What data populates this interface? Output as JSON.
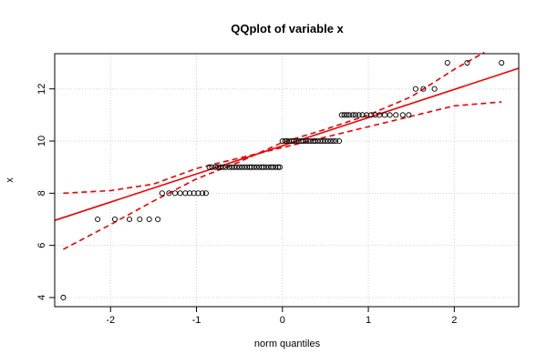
{
  "chart_data": {
    "type": "scatter",
    "title": "QQplot of variable x",
    "xlabel": "norm quantiles",
    "ylabel": "x",
    "xlim": [
      -2.65,
      2.75
    ],
    "ylim": [
      3.65,
      13.35
    ],
    "xticks": [
      -2,
      -1,
      0,
      1,
      2
    ],
    "yticks": [
      4,
      6,
      8,
      10,
      12
    ],
    "grid": true,
    "colors": {
      "points": "#000000",
      "fit": "#ee0000",
      "band": "#ee0000",
      "grid": "#d3d3d3"
    },
    "fit_line": {
      "intercept": 9.82,
      "slope": 1.08
    },
    "band_upper": {
      "x": [
        -2.55,
        -2.0,
        -1.5,
        -1.0,
        -0.5,
        0.0,
        0.5,
        1.0,
        1.5,
        2.0,
        2.35
      ],
      "y": [
        5.85,
        6.8,
        7.7,
        8.55,
        9.2,
        9.95,
        10.45,
        11.0,
        11.7,
        12.75,
        13.4
      ]
    },
    "band_lower": {
      "x": [
        -2.55,
        -2.0,
        -1.5,
        -1.0,
        -0.5,
        0.0,
        0.5,
        1.0,
        1.5,
        2.0,
        2.55
      ],
      "y": [
        8.0,
        8.1,
        8.35,
        8.95,
        9.35,
        9.75,
        10.15,
        10.55,
        10.95,
        11.35,
        11.5
      ]
    },
    "points_x": [
      -2.55,
      -2.15,
      -1.95,
      -1.78,
      -1.66,
      -1.55,
      -1.45,
      -1.4,
      -1.32,
      -1.25,
      -1.19,
      -1.13,
      -1.08,
      -1.03,
      -0.98,
      -0.93,
      -0.89,
      -0.85,
      -0.82,
      -0.78,
      -0.75,
      -0.72,
      -0.69,
      -0.66,
      -0.62,
      -0.59,
      -0.56,
      -0.53,
      -0.5,
      -0.47,
      -0.44,
      -0.41,
      -0.38,
      -0.36,
      -0.33,
      -0.3,
      -0.27,
      -0.24,
      -0.22,
      -0.19,
      -0.16,
      -0.13,
      -0.11,
      -0.08,
      -0.05,
      -0.03,
      0.0,
      0.03,
      0.05,
      0.08,
      0.11,
      0.13,
      0.16,
      0.19,
      0.22,
      0.24,
      0.27,
      0.3,
      0.33,
      0.36,
      0.38,
      0.41,
      0.44,
      0.47,
      0.5,
      0.53,
      0.56,
      0.59,
      0.62,
      0.66,
      0.69,
      0.72,
      0.75,
      0.78,
      0.82,
      0.85,
      0.89,
      0.93,
      0.98,
      1.03,
      1.08,
      1.13,
      1.19,
      1.25,
      1.32,
      1.4,
      1.47,
      1.55,
      1.64,
      1.77,
      1.92,
      2.15,
      2.55
    ],
    "points_y": [
      4,
      7,
      7,
      7,
      7,
      7,
      7,
      8,
      8,
      8,
      8,
      8,
      8,
      8,
      8,
      8,
      8,
      9,
      9,
      9,
      9,
      9,
      9,
      9,
      9,
      9,
      9,
      9,
      9,
      9,
      9,
      9,
      9,
      9,
      9,
      9,
      9,
      9,
      9,
      9,
      9,
      9,
      9,
      9,
      9,
      9,
      10,
      10,
      10,
      10,
      10,
      10,
      10,
      10,
      10,
      10,
      10,
      10,
      10,
      10,
      10,
      10,
      10,
      10,
      10,
      10,
      10,
      10,
      10,
      10,
      11,
      11,
      11,
      11,
      11,
      11,
      11,
      11,
      11,
      11,
      11,
      11,
      11,
      11,
      11,
      11,
      11,
      12,
      12,
      12,
      13,
      13,
      13
    ]
  }
}
